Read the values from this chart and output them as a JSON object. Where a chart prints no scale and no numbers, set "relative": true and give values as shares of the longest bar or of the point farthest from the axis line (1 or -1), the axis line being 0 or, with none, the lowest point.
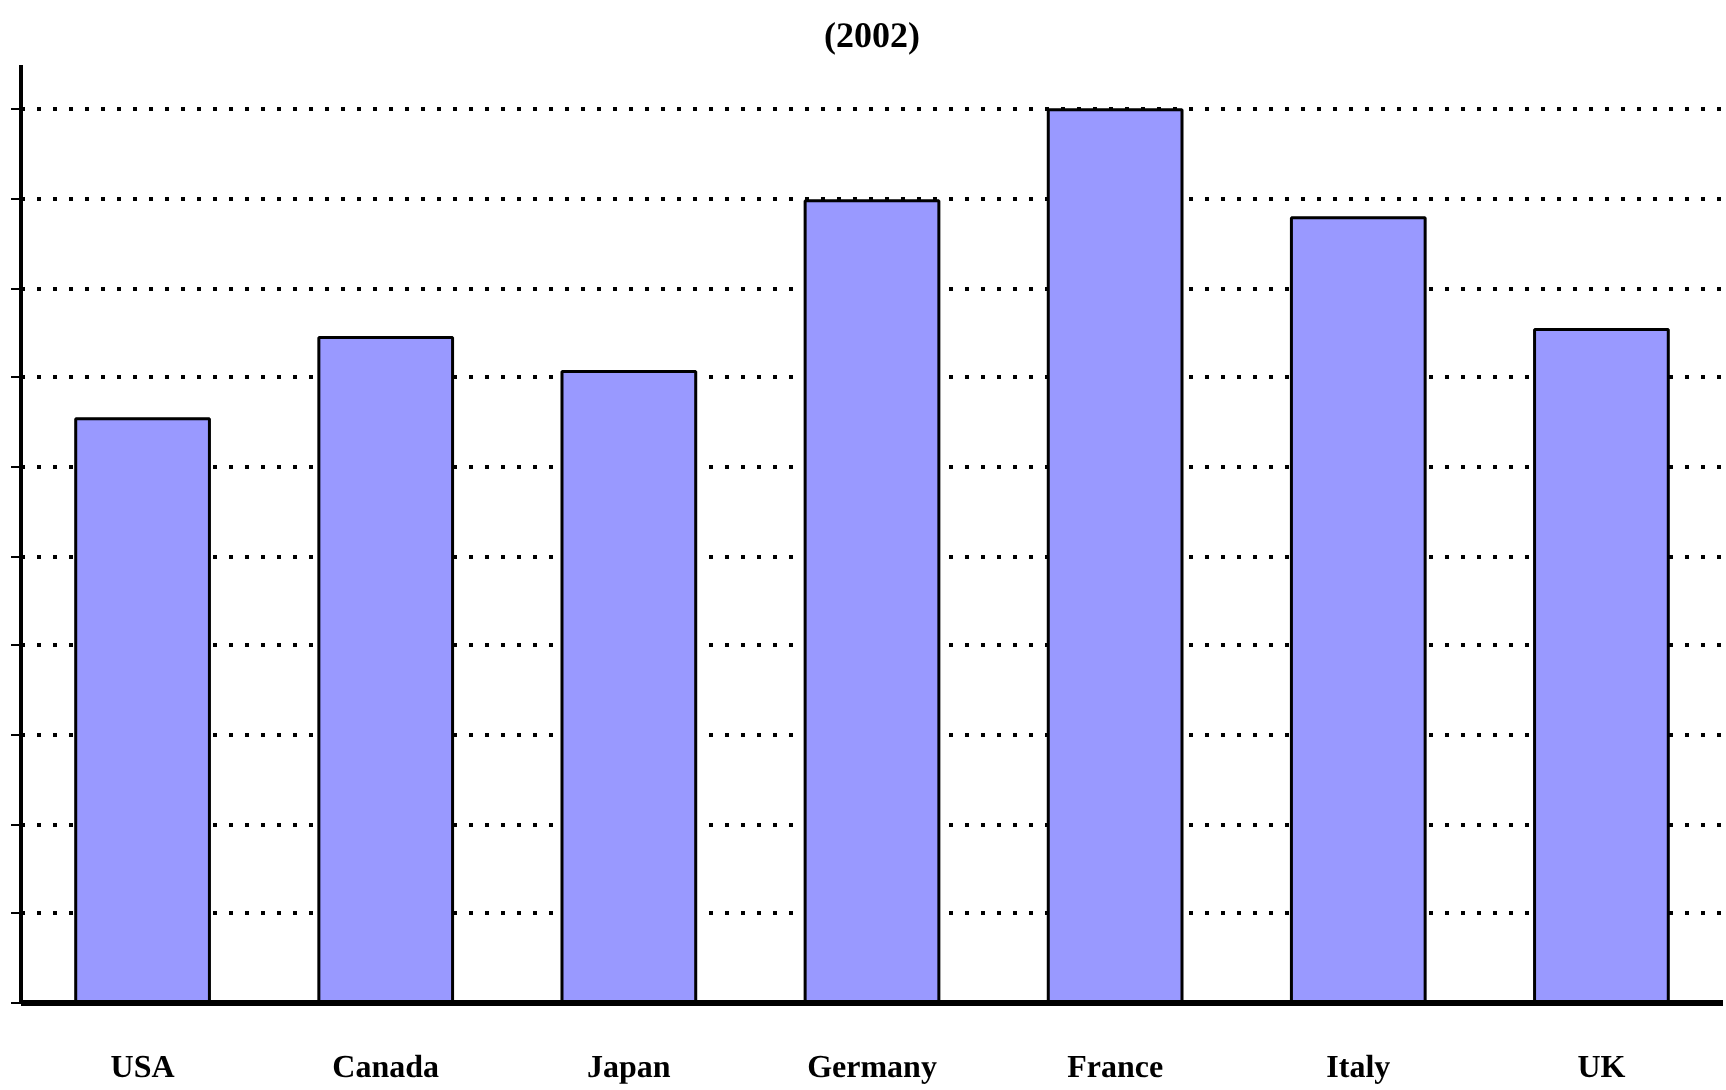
{
  "chart_data": {
    "type": "bar",
    "title": "(2002)",
    "relative": true,
    "categories": [
      "USA",
      "Canada",
      "Japan",
      "Germany",
      "France",
      "Italy",
      "UK"
    ],
    "series": [
      {
        "color": "#9999ff",
        "values": [
          0.654,
          0.745,
          0.707,
          0.898,
          1,
          0.879,
          0.754
        ]
      }
    ],
    "grid": "y"
  }
}
